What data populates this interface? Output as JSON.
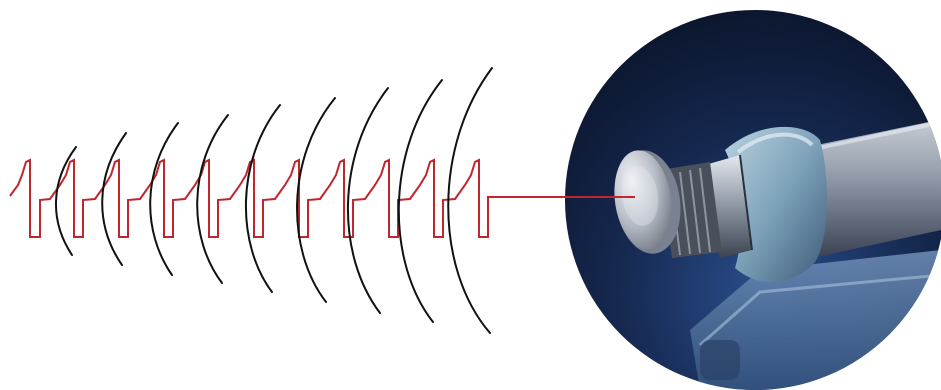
{
  "figure": {
    "waveform_color": "#c0262d",
    "wave_arc_color": "#111111",
    "background_color": "#ffffff",
    "photo_background_color": "#0d1a33",
    "pulse_count": 10,
    "arc_count": 9,
    "icons": [
      "square-pulse-waveform",
      "acoustic-wave-arcs",
      "handpiece-photo"
    ]
  }
}
